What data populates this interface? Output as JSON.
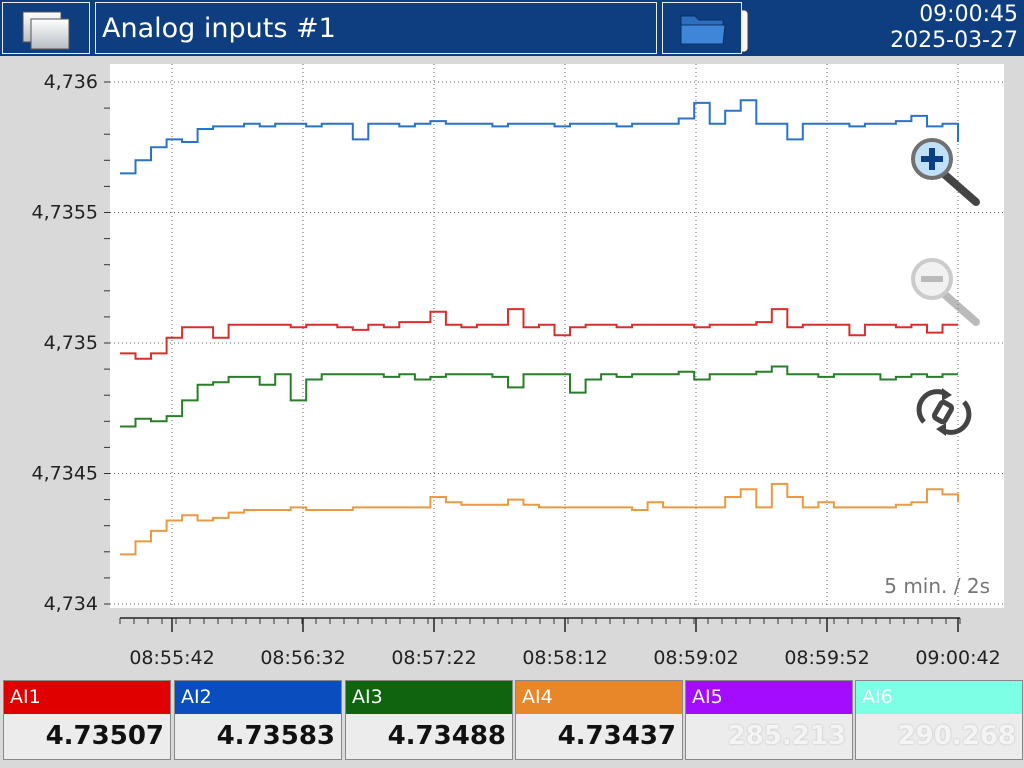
{
  "header": {
    "title": "Analog inputs #1",
    "time": "09:00:45",
    "date": "2025-03-27"
  },
  "chart_data": {
    "type": "line",
    "ylim": [
      4.734,
      4.736
    ],
    "y_ticks": [
      "4,736",
      "4,7355",
      "4,735",
      "4,7345",
      "4,734"
    ],
    "x_ticks": [
      "08:55:42",
      "08:56:32",
      "08:57:22",
      "08:58:12",
      "08:59:02",
      "08:59:52",
      "09:00:42"
    ],
    "scale_label": "5 min. / 2s",
    "series": [
      {
        "name": "AI2",
        "color": "#2a73c7",
        "values": [
          4.73565,
          4.7357,
          4.73575,
          4.73578,
          4.73577,
          4.73582,
          4.73583,
          4.73583,
          4.73584,
          4.73583,
          4.73584,
          4.73584,
          4.73583,
          4.73584,
          4.73584,
          4.73578,
          4.73584,
          4.73584,
          4.73583,
          4.73584,
          4.73585,
          4.73584,
          4.73584,
          4.73584,
          4.73583,
          4.73584,
          4.73584,
          4.73584,
          4.73583,
          4.73584,
          4.73584,
          4.73584,
          4.73583,
          4.73584,
          4.73584,
          4.73584,
          4.73586,
          4.73592,
          4.73584,
          4.73589,
          4.73593,
          4.73584,
          4.73584,
          4.73578,
          4.73584,
          4.73584,
          4.73584,
          4.73583,
          4.73584,
          4.73584,
          4.73585,
          4.73587,
          4.73583,
          4.73584,
          4.73577
        ]
      },
      {
        "name": "AI1",
        "color": "#d92e2e",
        "values": [
          4.73496,
          4.73494,
          4.73496,
          4.73502,
          4.73506,
          4.73506,
          4.73502,
          4.73507,
          4.73507,
          4.73507,
          4.73507,
          4.73506,
          4.73507,
          4.73507,
          4.73506,
          4.73505,
          4.73507,
          4.73506,
          4.73508,
          4.73508,
          4.73512,
          4.73507,
          4.73506,
          4.73507,
          4.73507,
          4.73513,
          4.73506,
          4.73507,
          4.73503,
          4.73506,
          4.73507,
          4.73507,
          4.73506,
          4.73507,
          4.73507,
          4.73507,
          4.73507,
          4.73506,
          4.73507,
          4.73507,
          4.73507,
          4.73508,
          4.73513,
          4.73506,
          4.73507,
          4.73507,
          4.73507,
          4.73503,
          4.73507,
          4.73507,
          4.73506,
          4.73507,
          4.73504,
          4.73507,
          4.73507
        ]
      },
      {
        "name": "AI3",
        "color": "#2a7d2a",
        "values": [
          4.73468,
          4.73471,
          4.7347,
          4.73472,
          4.73478,
          4.73484,
          4.73485,
          4.73487,
          4.73487,
          4.73484,
          4.73488,
          4.73478,
          4.73486,
          4.73488,
          4.73488,
          4.73488,
          4.73488,
          4.73487,
          4.73488,
          4.73486,
          4.73487,
          4.73488,
          4.73488,
          4.73488,
          4.73487,
          4.73483,
          4.73488,
          4.73488,
          4.73488,
          4.73481,
          4.73486,
          4.73488,
          4.73487,
          4.73488,
          4.73488,
          4.73488,
          4.73489,
          4.73486,
          4.73488,
          4.73488,
          4.73488,
          4.73489,
          4.73491,
          4.73488,
          4.73488,
          4.73487,
          4.73488,
          4.73488,
          4.73488,
          4.73486,
          4.73487,
          4.73488,
          4.73487,
          4.73488,
          4.73488
        ]
      },
      {
        "name": "AI4",
        "color": "#e89a44",
        "values": [
          4.73419,
          4.73424,
          4.73428,
          4.73432,
          4.73434,
          4.73432,
          4.73433,
          4.73435,
          4.73436,
          4.73436,
          4.73436,
          4.73437,
          4.73436,
          4.73436,
          4.73436,
          4.73437,
          4.73437,
          4.73437,
          4.73437,
          4.73437,
          4.73441,
          4.73439,
          4.73438,
          4.73438,
          4.73438,
          4.7344,
          4.73438,
          4.73437,
          4.73437,
          4.73437,
          4.73437,
          4.73437,
          4.73437,
          4.73436,
          4.73439,
          4.73437,
          4.73437,
          4.73437,
          4.73437,
          4.73441,
          4.73444,
          4.73437,
          4.73446,
          4.73441,
          4.73437,
          4.73439,
          4.73437,
          4.73437,
          4.73437,
          4.73437,
          4.73438,
          4.73439,
          4.73444,
          4.73442,
          4.73439
        ]
      }
    ]
  },
  "channels": [
    {
      "label": "AI1",
      "value": "4.73507",
      "color": "#e00000",
      "dim": false
    },
    {
      "label": "AI2",
      "value": "4.73583",
      "color": "#0a4dbf",
      "dim": false
    },
    {
      "label": "AI3",
      "value": "4.73488",
      "color": "#106410",
      "dim": false
    },
    {
      "label": "AI4",
      "value": "4.73437",
      "color": "#e8862a",
      "dim": false
    },
    {
      "label": "AI5",
      "value": "285.213",
      "color": "#a40cff",
      "dim": true
    },
    {
      "label": "AI6",
      "value": "290.268",
      "color": "#7cffe4",
      "dim": true
    }
  ]
}
